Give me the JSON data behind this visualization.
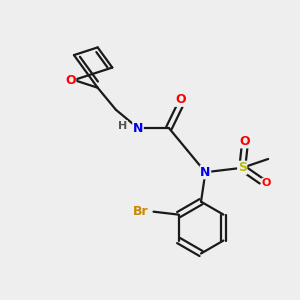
{
  "background_color": "#eeeeee",
  "bond_color": "#1a1a1a",
  "atom_colors": {
    "O": "#ff0000",
    "N": "#0000ee",
    "S": "#bbbb00",
    "Br": "#cc8800",
    "H": "#555555",
    "C": "#1a1a1a"
  },
  "figsize": [
    3.0,
    3.0
  ],
  "dpi": 100
}
